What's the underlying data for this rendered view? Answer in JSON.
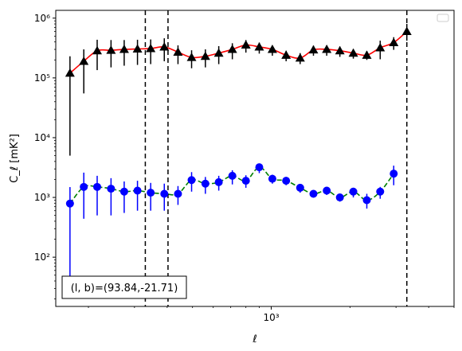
{
  "chart_data": {
    "type": "line",
    "xscale": "log",
    "yscale": "log",
    "xlim": [
      150,
      5000
    ],
    "ylim": [
      15,
      1350000
    ],
    "xlabel": "ℓ",
    "ylabel": "C_ℓ [mK²]",
    "x_ticks": [
      {
        "value": 1000,
        "label": "10³"
      }
    ],
    "y_ticks": [
      {
        "value": 100,
        "label": "10²"
      },
      {
        "value": 1000,
        "label": "10³"
      },
      {
        "value": 10000,
        "label": "10⁴"
      },
      {
        "value": 100000,
        "label": "10⁵"
      },
      {
        "value": 1000000,
        "label": "10⁶"
      }
    ],
    "legend": {
      "placement": "upper-right",
      "entries": []
    },
    "annotation": {
      "text": "(l, b)=(93.84,-21.71)",
      "placement": "lower-left"
    },
    "vlines": [
      {
        "x": 330,
        "style": "dashed",
        "color": "#000000"
      },
      {
        "x": 403,
        "style": "dashed",
        "color": "#000000"
      },
      {
        "x": 3300,
        "style": "dashed",
        "color": "#000000"
      }
    ],
    "series": [
      {
        "marker": "triangle",
        "marker_color": "#000000",
        "line_color": "#ff0000",
        "line_style": "solid",
        "x": [
          170,
          192,
          216,
          244,
          274,
          308,
          346,
          390,
          440,
          496,
          560,
          630,
          710,
          800,
          900,
          1010,
          1140,
          1290,
          1450,
          1630,
          1830,
          2060,
          2320,
          2610,
          2940,
          3300,
          3720,
          4200,
          4750
        ],
        "y": [
          120000,
          190000,
          285000,
          290000,
          300000,
          305000,
          310000,
          330000,
          270000,
          220000,
          230000,
          260000,
          300000,
          355000,
          330000,
          300000,
          240000,
          215000,
          295000,
          300000,
          285000,
          260000,
          240000,
          320000,
          390000,
          600000,
          null,
          null,
          null
        ],
        "err_low": [
          115000,
          135000,
          150000,
          140000,
          140000,
          140000,
          140000,
          140000,
          100000,
          75000,
          80000,
          90000,
          95000,
          90000,
          75000,
          65000,
          50000,
          45000,
          60000,
          65000,
          60000,
          50000,
          40000,
          115000,
          95000,
          180000,
          null,
          null,
          null
        ],
        "err_high": [
          110000,
          110000,
          150000,
          140000,
          130000,
          130000,
          130000,
          130000,
          80000,
          70000,
          70000,
          80000,
          80000,
          75000,
          60000,
          45000,
          45000,
          45000,
          50000,
          50000,
          50000,
          40000,
          40000,
          100000,
          90000,
          200000,
          null,
          null,
          null
        ]
      },
      {
        "marker": "circle",
        "marker_color": "#0000ff",
        "line_color": "#008000",
        "line_style": "dashed",
        "x": [
          170,
          192,
          216,
          244,
          274,
          308,
          346,
          390,
          440,
          496,
          560,
          630,
          710,
          800,
          900,
          1010,
          1140,
          1290,
          1450,
          1630,
          1830,
          2060,
          2320,
          2610,
          2940,
          3300,
          3720,
          4200,
          4750
        ],
        "y": [
          790,
          1500,
          1500,
          1400,
          1250,
          1300,
          1200,
          1150,
          1150,
          1950,
          1700,
          1800,
          2300,
          1900,
          3200,
          2050,
          1900,
          1450,
          1150,
          1300,
          1000,
          1250,
          900,
          1250,
          2500,
          null,
          null,
          null,
          null
        ],
        "err_low": [
          760,
          1060,
          1000,
          900,
          700,
          700,
          600,
          550,
          400,
          700,
          550,
          500,
          650,
          450,
          650,
          350,
          300,
          250,
          150,
          200,
          150,
          250,
          250,
          300,
          900,
          null,
          null,
          null,
          null
        ],
        "err_high": [
          700,
          1100,
          800,
          700,
          600,
          600,
          550,
          550,
          400,
          700,
          500,
          500,
          550,
          450,
          450,
          350,
          300,
          200,
          150,
          200,
          150,
          200,
          250,
          250,
          900,
          null,
          null,
          null,
          null
        ]
      }
    ]
  }
}
